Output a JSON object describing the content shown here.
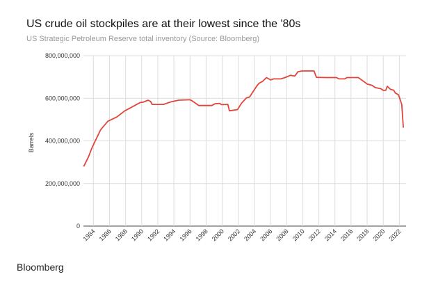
{
  "chart_data": {
    "type": "line",
    "title": "US crude oil stockpiles are at their lowest since the '80s",
    "subtitle": "US Strategic Petroleum Reserve total inventory (Source: Bloomberg)",
    "xlabel": "",
    "ylabel": "Barrels",
    "ylim": [
      0,
      800000000
    ],
    "yticks": [
      "0",
      "200,000,000",
      "400,000,000",
      "600,000,000",
      "800,000,000"
    ],
    "yticks_values": [
      0,
      200000000,
      400000000,
      600000000,
      800000000
    ],
    "xticks": [
      "1984",
      "1986",
      "1988",
      "1990",
      "1992",
      "1994",
      "1996",
      "1998",
      "2000",
      "2002",
      "2004",
      "2006",
      "2008",
      "2010",
      "2012",
      "2014",
      "2016",
      "2018",
      "2020",
      "2022"
    ],
    "grid": true,
    "line_color": "#e0443a",
    "series": [
      {
        "x": [
          1982.8,
          1983.4,
          1983.8,
          1984.2,
          1984.9,
          1985.8,
          1986.9,
          1987.9,
          1988.9,
          1989.8,
          1990.2,
          1990.8,
          1991.1,
          1991.3,
          1992.7,
          1993.7,
          1994.6,
          1996.0,
          1996.3,
          1997.1,
          1998.7,
          1999.1,
          1999.7,
          1999.9,
          2000.7,
          2000.9,
          2001.9,
          2002.4,
          2003.0,
          2003.4,
          2004.3,
          2004.6,
          2005.0,
          2005.5,
          2006.0,
          2006.4,
          2007.3,
          2007.8,
          2008.5,
          2009.0,
          2009.4,
          2009.9,
          2011.4,
          2011.7,
          2012.9,
          2014.2,
          2014.5,
          2015.2,
          2015.5,
          2016.9,
          2018.0,
          2018.6,
          2019.0,
          2019.7,
          2020.0,
          2020.3,
          2020.5,
          2020.9,
          2021.3,
          2021.5,
          2021.9,
          2022.3,
          2022.5
        ],
        "y": [
          280000000,
          326000000,
          365000000,
          397000000,
          452000000,
          492000000,
          512000000,
          541000000,
          561000000,
          580000000,
          582000000,
          591000000,
          585000000,
          571000000,
          571000000,
          584000000,
          591000000,
          593000000,
          587000000,
          566000000,
          566000000,
          574000000,
          576000000,
          570000000,
          571000000,
          541000000,
          547000000,
          577000000,
          601000000,
          606000000,
          658000000,
          671000000,
          679000000,
          697000000,
          686000000,
          691000000,
          691000000,
          697000000,
          708000000,
          704000000,
          724000000,
          728000000,
          728000000,
          698000000,
          697000000,
          697000000,
          691000000,
          691000000,
          697000000,
          697000000,
          667000000,
          661000000,
          650000000,
          645000000,
          637000000,
          637000000,
          656000000,
          642000000,
          638000000,
          625000000,
          616000000,
          571000000,
          462000000
        ]
      }
    ]
  },
  "footer": {
    "brand": "Bloomberg"
  }
}
